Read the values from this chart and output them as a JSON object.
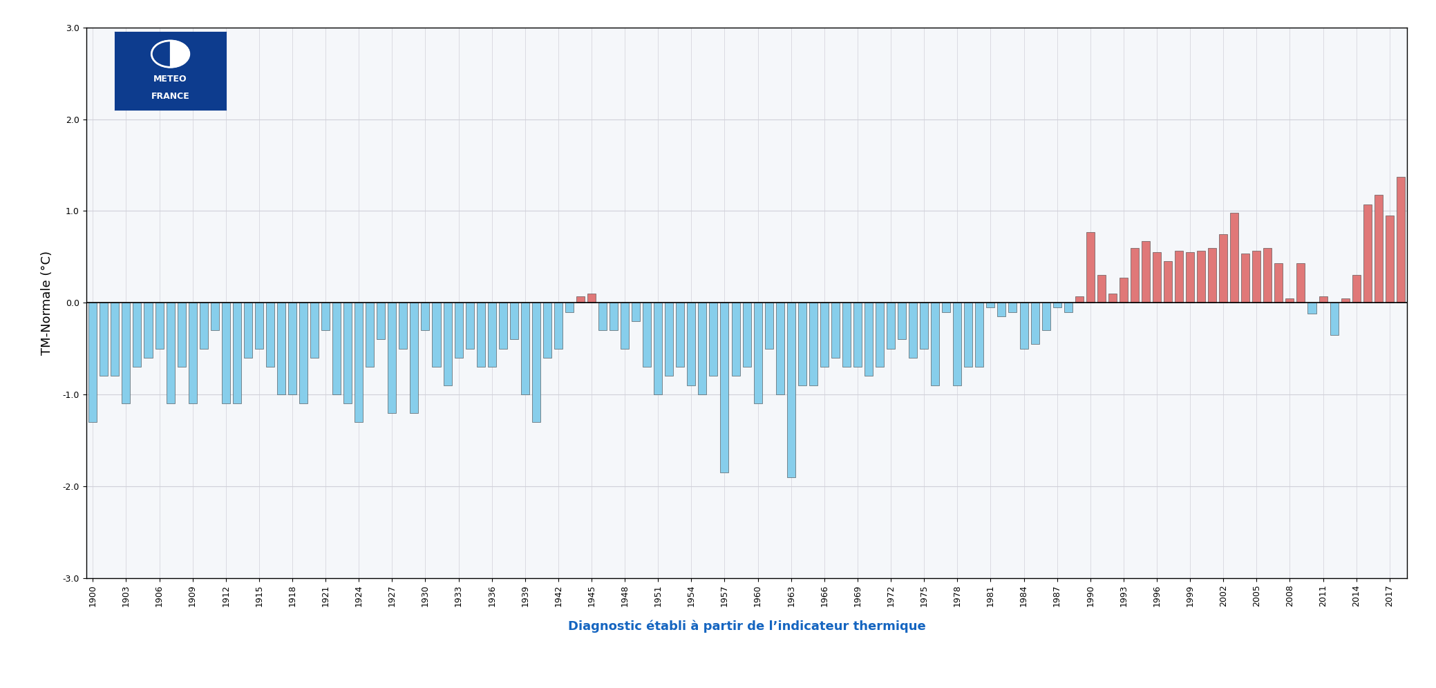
{
  "years": [
    1900,
    1901,
    1902,
    1903,
    1904,
    1905,
    1906,
    1907,
    1908,
    1909,
    1910,
    1911,
    1912,
    1913,
    1914,
    1915,
    1916,
    1917,
    1918,
    1919,
    1920,
    1921,
    1922,
    1923,
    1924,
    1925,
    1926,
    1927,
    1928,
    1929,
    1930,
    1931,
    1932,
    1933,
    1934,
    1935,
    1936,
    1937,
    1938,
    1939,
    1940,
    1941,
    1942,
    1943,
    1944,
    1945,
    1946,
    1947,
    1948,
    1949,
    1950,
    1951,
    1952,
    1953,
    1954,
    1955,
    1956,
    1957,
    1958,
    1959,
    1960,
    1961,
    1962,
    1963,
    1964,
    1965,
    1966,
    1967,
    1968,
    1969,
    1970,
    1971,
    1972,
    1973,
    1974,
    1975,
    1976,
    1977,
    1978,
    1979,
    1980,
    1981,
    1982,
    1983,
    1984,
    1985,
    1986,
    1987,
    1988,
    1989,
    1990,
    1991,
    1992,
    1993,
    1994,
    1995,
    1996,
    1997,
    1998,
    1999,
    2000,
    2001,
    2002,
    2003,
    2004,
    2005,
    2006,
    2007,
    2008,
    2009,
    2010,
    2011,
    2012,
    2013,
    2014,
    2015,
    2016,
    2017,
    2018
  ],
  "values": [
    -1.3,
    -0.8,
    -0.8,
    -1.1,
    -0.7,
    -0.6,
    -0.5,
    -1.1,
    -0.7,
    -1.1,
    -0.5,
    -0.3,
    -1.1,
    -1.1,
    -0.6,
    -0.5,
    -0.7,
    -1.0,
    -1.0,
    -1.1,
    -0.6,
    -0.3,
    -1.0,
    -1.1,
    -1.3,
    -0.7,
    -0.4,
    -1.2,
    -0.5,
    -1.2,
    -0.3,
    -0.7,
    -0.9,
    -0.6,
    -0.5,
    -0.7,
    -0.7,
    -0.5,
    -0.4,
    -1.0,
    -1.3,
    -0.6,
    -0.5,
    -0.1,
    0.07,
    0.1,
    -0.3,
    -0.3,
    -0.5,
    -0.2,
    -0.7,
    -1.0,
    -0.8,
    -0.7,
    -0.9,
    -1.0,
    -0.8,
    -1.85,
    -0.8,
    -0.7,
    -1.1,
    -0.5,
    -1.0,
    -1.9,
    -0.9,
    -0.9,
    -0.7,
    -0.6,
    -0.7,
    -0.7,
    -0.8,
    -0.7,
    -0.5,
    -0.4,
    -0.6,
    -0.5,
    -0.9,
    -0.1,
    -0.9,
    -0.7,
    -0.7,
    -0.05,
    -0.15,
    -0.1,
    -0.5,
    -0.45,
    -0.3,
    -0.05,
    -0.1,
    0.07,
    0.77,
    0.3,
    0.1,
    0.27,
    0.6,
    0.67,
    0.55,
    0.45,
    0.57,
    0.55,
    0.57,
    0.6,
    0.75,
    0.98,
    0.54,
    0.57,
    0.6,
    0.43,
    0.05,
    0.43,
    -0.12,
    0.07,
    -0.35,
    0.05,
    0.3,
    1.07,
    1.18,
    0.95,
    1.37
  ],
  "color_positive": "#E07878",
  "color_negative": "#87CEEB",
  "ylabel": "TM-Normale (°C)",
  "xlabel": "Diagnostic établi à partir de l’indicateur thermique",
  "xlabel_color": "#1565C0",
  "ylim": [
    -3.0,
    3.0
  ],
  "yticks": [
    -3.0,
    -2.0,
    -1.0,
    0.0,
    1.0,
    2.0,
    3.0
  ],
  "background_color": "#FFFFFF",
  "plot_bg_color": "#F5F7FA",
  "grid_color": "#D0D0D8",
  "bar_edge_color": "#404040",
  "meteo_box_color": "#0D3C8E",
  "axis_label_fontsize": 13,
  "tick_fontsize": 9,
  "ylabel_fontsize": 13,
  "bar_width": 0.75
}
